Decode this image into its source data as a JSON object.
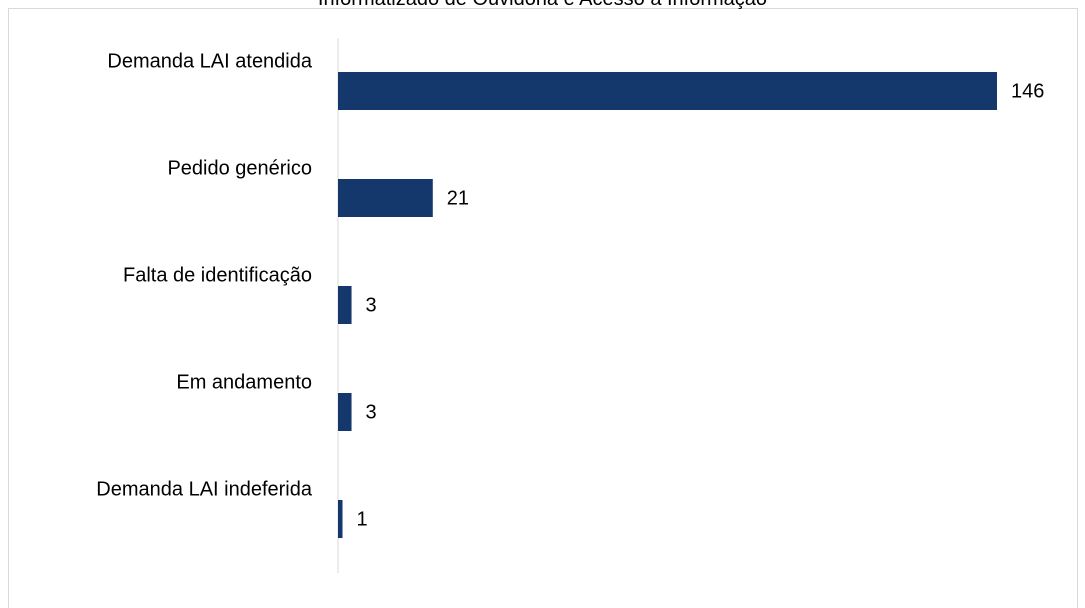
{
  "chart_data": {
    "type": "bar",
    "orientation": "horizontal",
    "title": "Informatizado de Ouvidoria e Acesso à Informação",
    "categories": [
      "Demanda LAI atendida",
      "Pedido genérico",
      "Falta de identificação",
      "Em andamento",
      "Demanda LAI indeferida"
    ],
    "values": [
      146,
      21,
      3,
      3,
      1
    ],
    "xlim": [
      0,
      146
    ],
    "bar_color": "#14386b",
    "axis_color": "#d9d9d9",
    "grid": false,
    "legend": "none"
  }
}
